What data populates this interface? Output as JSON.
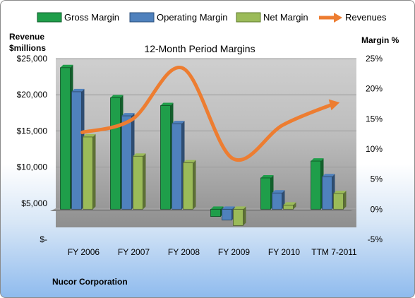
{
  "chart_data": {
    "type": "bar",
    "title": "12-Month Period Margins",
    "company": "Nucor Corporation",
    "ylabel_left": [
      "Revenue",
      "$millions"
    ],
    "ylabel_right": "Margin %",
    "categories": [
      "FY 2006",
      "FY 2007",
      "FY 2008",
      "FY 2009",
      "FY 2010",
      "TTM 7-2011"
    ],
    "left_axis": {
      "min": 0,
      "max": 25000,
      "ticks": [
        "$-",
        "$5,000",
        "$10,000",
        "$15,000",
        "$20,000",
        "$25,000"
      ],
      "tick_values": [
        0,
        5000,
        10000,
        15000,
        20000,
        25000
      ]
    },
    "right_axis": {
      "min": -5,
      "max": 25,
      "ticks": [
        "-5%",
        "0%",
        "5%",
        "10%",
        "15%",
        "20%",
        "25%"
      ],
      "tick_values": [
        -5,
        0,
        5,
        10,
        15,
        20,
        25
      ]
    },
    "series": [
      {
        "name": "Gross Margin",
        "kind": "bar",
        "axis": "right",
        "color": "#1f9e4a",
        "values": [
          23.5,
          18.5,
          17.2,
          -1.2,
          5.2,
          8.0
        ]
      },
      {
        "name": "Operating Margin",
        "kind": "bar",
        "axis": "right",
        "color": "#4f81bd",
        "values": [
          19.5,
          15.5,
          14.2,
          -1.8,
          2.7,
          5.4
        ]
      },
      {
        "name": "Net Margin",
        "kind": "bar",
        "axis": "right",
        "color": "#9bbb59",
        "values": [
          12.0,
          8.8,
          7.7,
          -2.7,
          0.7,
          2.6
        ]
      },
      {
        "name": "Revenues",
        "kind": "line",
        "axis": "left",
        "color": "#ed7d31",
        "values": [
          14800,
          16600,
          23700,
          11200,
          15800,
          18700
        ]
      }
    ],
    "grid": true,
    "legend": "top"
  }
}
